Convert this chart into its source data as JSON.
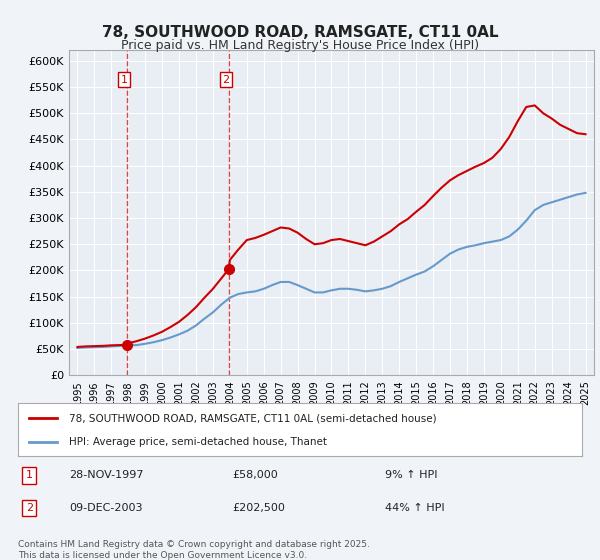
{
  "title": "78, SOUTHWOOD ROAD, RAMSGATE, CT11 0AL",
  "subtitle": "Price paid vs. HM Land Registry's House Price Index (HPI)",
  "ylabel": "",
  "background_color": "#f0f4f8",
  "plot_bg_color": "#e8eef4",
  "ylim": [
    0,
    620000
  ],
  "yticks": [
    0,
    50000,
    100000,
    150000,
    200000,
    250000,
    300000,
    350000,
    400000,
    450000,
    500000,
    550000,
    600000
  ],
  "ytick_labels": [
    "£0",
    "£50K",
    "£100K",
    "£150K",
    "£200K",
    "£250K",
    "£300K",
    "£350K",
    "£400K",
    "£450K",
    "£500K",
    "£550K",
    "£600K"
  ],
  "xlim_start": 1994.5,
  "xlim_end": 2025.5,
  "purchases": [
    {
      "label": "1",
      "date": "28-NOV-1997",
      "year": 1997.9,
      "price": 58000,
      "pct": "9%",
      "direction": "↑"
    },
    {
      "label": "2",
      "date": "09-DEC-2003",
      "year": 2003.93,
      "price": 202500,
      "pct": "44%",
      "direction": "↑"
    }
  ],
  "legend_line1": "78, SOUTHWOOD ROAD, RAMSGATE, CT11 0AL (semi-detached house)",
  "legend_line2": "HPI: Average price, semi-detached house, Thanet",
  "footer": "Contains HM Land Registry data © Crown copyright and database right 2025.\nThis data is licensed under the Open Government Licence v3.0.",
  "red_color": "#cc0000",
  "blue_color": "#6699cc",
  "hpi_years": [
    1995,
    1995.5,
    1996,
    1996.5,
    1997,
    1997.5,
    1998,
    1998.5,
    1999,
    1999.5,
    2000,
    2000.5,
    2001,
    2001.5,
    2002,
    2002.5,
    2003,
    2003.5,
    2004,
    2004.5,
    2005,
    2005.5,
    2006,
    2006.5,
    2007,
    2007.5,
    2008,
    2008.5,
    2009,
    2009.5,
    2010,
    2010.5,
    2011,
    2011.5,
    2012,
    2012.5,
    2013,
    2013.5,
    2014,
    2014.5,
    2015,
    2015.5,
    2016,
    2016.5,
    2017,
    2017.5,
    2018,
    2018.5,
    2019,
    2019.5,
    2020,
    2020.5,
    2021,
    2021.5,
    2022,
    2022.5,
    2023,
    2023.5,
    2024,
    2024.5,
    2025
  ],
  "hpi_values": [
    52000,
    53000,
    53500,
    54000,
    55000,
    56000,
    57000,
    57500,
    60000,
    63000,
    67000,
    72000,
    78000,
    85000,
    95000,
    108000,
    120000,
    135000,
    148000,
    155000,
    158000,
    160000,
    165000,
    172000,
    178000,
    178000,
    172000,
    165000,
    158000,
    158000,
    162000,
    165000,
    165000,
    163000,
    160000,
    162000,
    165000,
    170000,
    178000,
    185000,
    192000,
    198000,
    208000,
    220000,
    232000,
    240000,
    245000,
    248000,
    252000,
    255000,
    258000,
    265000,
    278000,
    295000,
    315000,
    325000,
    330000,
    335000,
    340000,
    345000,
    348000
  ],
  "price_years": [
    1995,
    1995.5,
    1996,
    1996.5,
    1997,
    1997.5,
    1997.9,
    1998,
    1998.5,
    1999,
    1999.5,
    2000,
    2000.5,
    2001,
    2001.5,
    2002,
    2002.5,
    2003,
    2003.5,
    2003.93,
    2004,
    2004.5,
    2005,
    2005.5,
    2006,
    2006.5,
    2007,
    2007.5,
    2008,
    2008.5,
    2009,
    2009.5,
    2010,
    2010.5,
    2011,
    2011.5,
    2012,
    2012.5,
    2013,
    2013.5,
    2014,
    2014.5,
    2015,
    2015.5,
    2016,
    2016.5,
    2017,
    2017.5,
    2018,
    2018.5,
    2019,
    2019.5,
    2020,
    2020.5,
    2021,
    2021.5,
    2022,
    2022.5,
    2023,
    2023.5,
    2024,
    2024.5,
    2025
  ],
  "price_values": [
    54000,
    55000,
    55500,
    56000,
    57000,
    57500,
    58000,
    61000,
    65000,
    70000,
    76000,
    83000,
    92000,
    102000,
    115000,
    130000,
    148000,
    165000,
    185000,
    202500,
    220000,
    240000,
    258000,
    262000,
    268000,
    275000,
    282000,
    280000,
    272000,
    260000,
    250000,
    252000,
    258000,
    260000,
    256000,
    252000,
    248000,
    255000,
    265000,
    275000,
    288000,
    298000,
    312000,
    325000,
    342000,
    358000,
    372000,
    382000,
    390000,
    398000,
    405000,
    415000,
    432000,
    455000,
    485000,
    512000,
    515000,
    500000,
    490000,
    478000,
    470000,
    462000,
    460000
  ]
}
